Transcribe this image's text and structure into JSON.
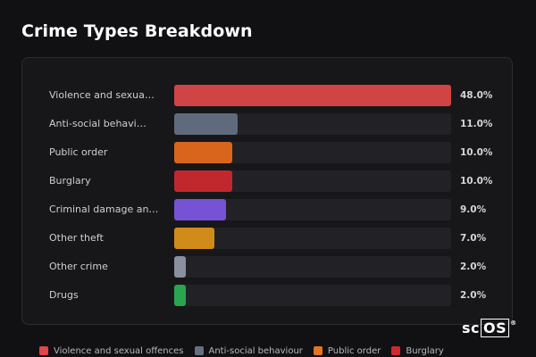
{
  "title": "Crime Types Breakdown",
  "logo": {
    "prefix": "sc",
    "boxed": "OS",
    "reg": "®"
  },
  "chart_data": {
    "type": "bar",
    "orientation": "horizontal",
    "title": "Crime Types Breakdown",
    "categories": [
      "Violence and sexua…",
      "Anti-social behavi…",
      "Public order",
      "Burglary",
      "Criminal damage an…",
      "Other theft",
      "Other crime",
      "Drugs"
    ],
    "values": [
      48.0,
      11.0,
      10.0,
      10.0,
      9.0,
      7.0,
      2.0,
      2.0
    ],
    "value_labels": [
      "48.0%",
      "11.0%",
      "10.0%",
      "10.0%",
      "9.0%",
      "7.0%",
      "2.0%",
      "2.0%"
    ],
    "colors": [
      "#d04446",
      "#5f6b7d",
      "#d9651d",
      "#c0282d",
      "#7652d4",
      "#d18b1a",
      "#8a90a0",
      "#2aa44e"
    ],
    "xlim": [
      0,
      48
    ],
    "unit": "%",
    "legend": [
      {
        "label": "Violence and sexual offences",
        "color": "#e04548"
      },
      {
        "label": "Anti-social behaviour",
        "color": "#66707f"
      },
      {
        "label": "Public order",
        "color": "#e37525"
      },
      {
        "label": "Burglary",
        "color": "#cc2a30"
      }
    ],
    "legend_position": "bottom"
  }
}
